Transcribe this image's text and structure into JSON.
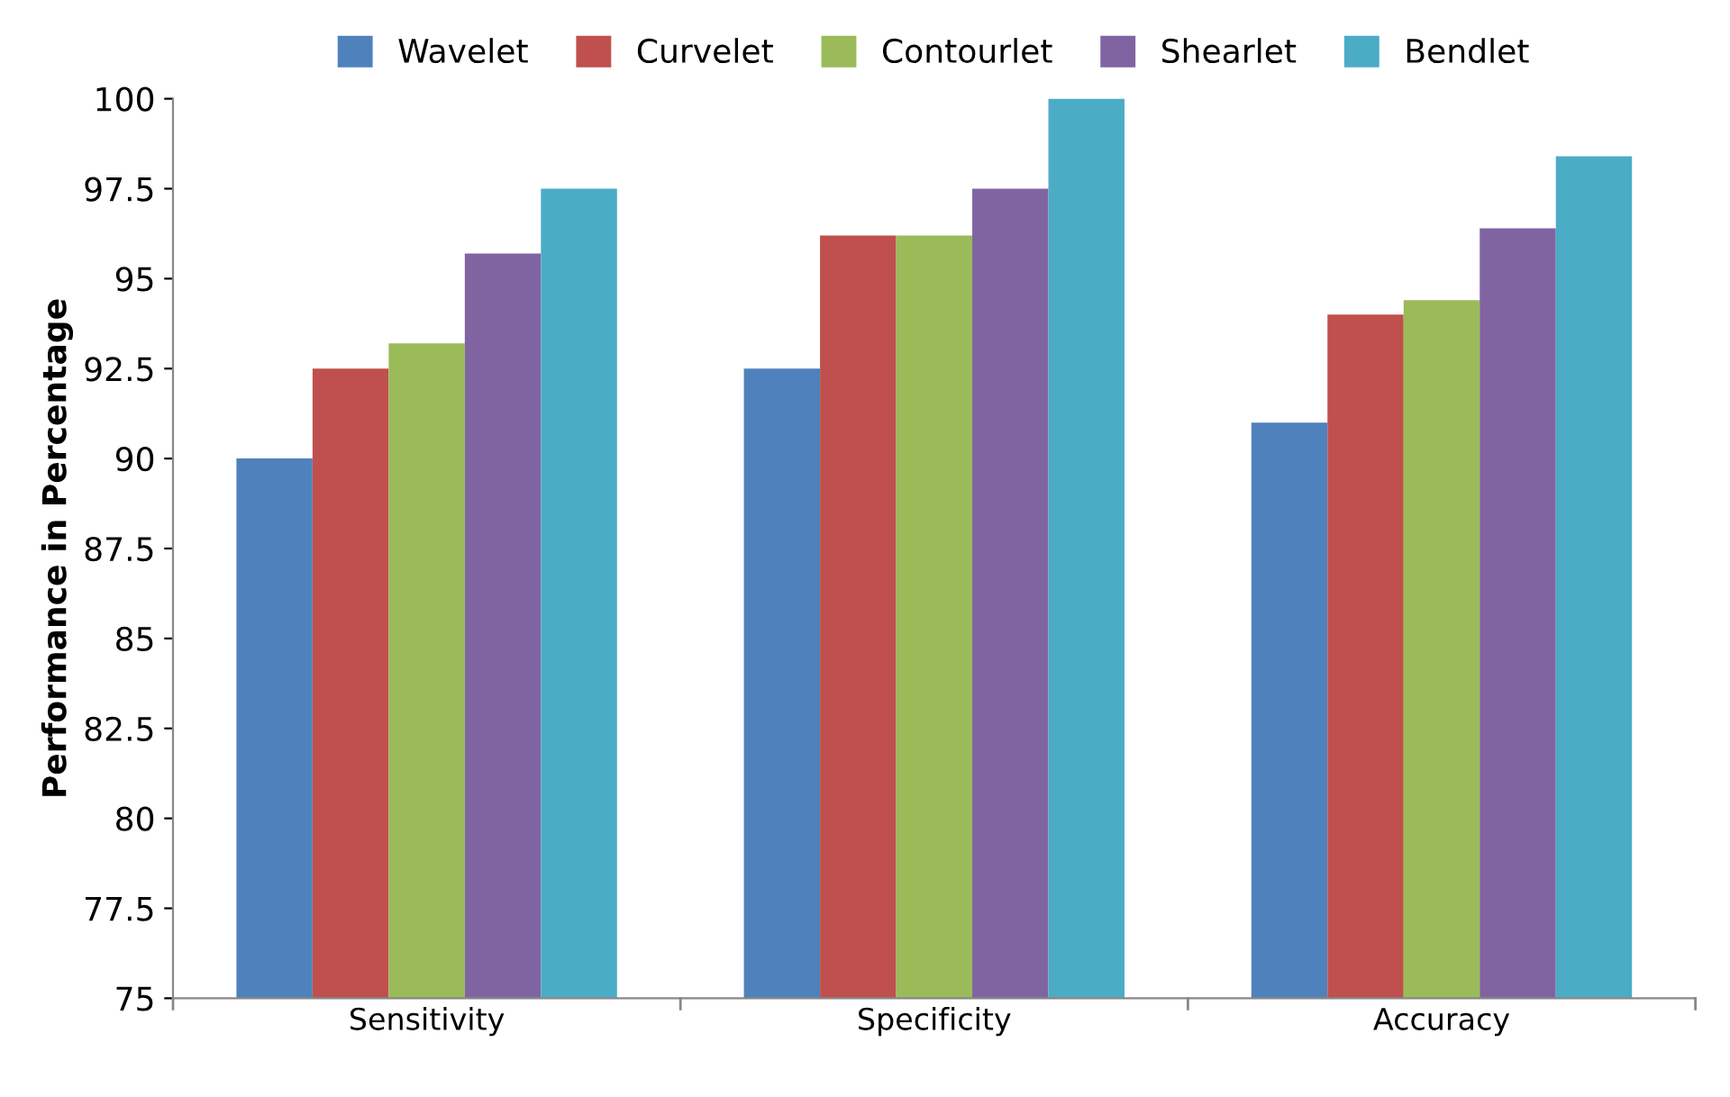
{
  "chart_data": {
    "type": "bar",
    "ylabel": "Performance in Percentage",
    "categories": [
      "Sensitivity",
      "Specificity",
      "Accuracy"
    ],
    "series": [
      {
        "name": "Wavelet",
        "color": "#4f81bd",
        "values": [
          90,
          92.5,
          91
        ]
      },
      {
        "name": "Curvelet",
        "color": "#c0504d",
        "values": [
          92.5,
          96.2,
          94
        ]
      },
      {
        "name": "Contourlet",
        "color": "#9bbb59",
        "values": [
          93.2,
          96.2,
          94.4
        ]
      },
      {
        "name": "Shearlet",
        "color": "#8064a2",
        "values": [
          95.7,
          97.5,
          96.4
        ]
      },
      {
        "name": "Bendlet",
        "color": "#4bacc6",
        "values": [
          97.5,
          100,
          98.4
        ]
      }
    ],
    "ylim": [
      75,
      100
    ],
    "yticks": [
      75,
      77.5,
      80,
      82.5,
      85,
      87.5,
      90,
      92.5,
      95,
      97.5,
      100
    ],
    "grid": false,
    "legend": "top"
  }
}
